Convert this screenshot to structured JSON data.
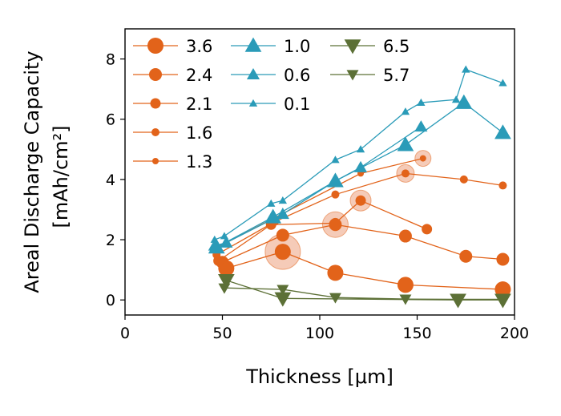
{
  "chart_data": {
    "type": "line",
    "title": "",
    "xlabel": "Thickness [μm]",
    "ylabel_line1": "Areal Discharge Capacity",
    "ylabel_line2": "[mAh/cm²]",
    "xlim": [
      0,
      200
    ],
    "ylim": [
      -0.5,
      9
    ],
    "xticks": [
      "0",
      "50",
      "100",
      "150",
      "200"
    ],
    "yticks": [
      "0",
      "2",
      "4",
      "6",
      "8"
    ],
    "grid": false,
    "legend_position": "upper-left",
    "colors": {
      "orange": "#e2631a",
      "teal": "#2a9bb8",
      "olive": "#5c7036",
      "highlight": "#f2b9a0"
    },
    "series": [
      {
        "name": "3.6",
        "color": "#e2631a",
        "marker": "circle",
        "size": 10,
        "lw": 1.3,
        "x": [
          52,
          81,
          108,
          144,
          194
        ],
        "y": [
          1.05,
          1.6,
          0.9,
          0.5,
          0.35
        ]
      },
      {
        "name": "2.4",
        "color": "#e2631a",
        "marker": "circle",
        "size": 8,
        "lw": 1.3,
        "x": [
          50,
          81,
          108,
          144,
          175,
          194
        ],
        "y": [
          1.25,
          2.15,
          2.5,
          2.12,
          1.45,
          1.35
        ]
      },
      {
        "name": "2.1",
        "color": "#e2631a",
        "marker": "circle",
        "size": 6.5,
        "lw": 1.3,
        "x": [
          48,
          75,
          108,
          121,
          155
        ],
        "y": [
          1.3,
          2.5,
          2.55,
          3.3,
          2.35
        ]
      },
      {
        "name": "1.6",
        "color": "#e2631a",
        "marker": "circle",
        "size": 5,
        "lw": 1.3,
        "x": [
          47,
          77,
          108,
          144,
          174,
          194
        ],
        "y": [
          1.5,
          2.6,
          3.5,
          4.2,
          4.0,
          3.8
        ]
      },
      {
        "name": "1.3",
        "color": "#e2631a",
        "marker": "circle",
        "size": 4,
        "lw": 1.3,
        "x": [
          46,
          76,
          121,
          153
        ],
        "y": [
          1.7,
          2.7,
          4.2,
          4.7
        ]
      },
      {
        "name": "1.0",
        "color": "#2a9bb8",
        "marker": "triangle-up",
        "size": 9,
        "lw": 1.3,
        "x": [
          47,
          76,
          108,
          144,
          174,
          194
        ],
        "y": [
          1.75,
          2.75,
          3.95,
          5.15,
          6.55,
          5.55
        ]
      },
      {
        "name": "0.6",
        "color": "#2a9bb8",
        "marker": "triangle-up",
        "size": 7,
        "lw": 1.3,
        "x": [
          46,
          52,
          81,
          108,
          121,
          152
        ],
        "y": [
          1.8,
          1.9,
          2.85,
          3.95,
          4.4,
          5.75
        ]
      },
      {
        "name": "0.1",
        "color": "#2a9bb8",
        "marker": "triangle-up",
        "size": 4.5,
        "lw": 1.3,
        "x": [
          46,
          51,
          75,
          81,
          108,
          121,
          144,
          152,
          170,
          175,
          194
        ],
        "y": [
          2.0,
          2.12,
          3.2,
          3.3,
          4.65,
          5.0,
          6.25,
          6.55,
          6.65,
          7.65,
          7.2
        ]
      },
      {
        "name": "6.5",
        "color": "#5c7036",
        "marker": "triangle-down",
        "size": 9,
        "lw": 1.3,
        "x": [
          52,
          81,
          171,
          194
        ],
        "y": [
          0.65,
          0.05,
          0.0,
          0.0
        ]
      },
      {
        "name": "5.7",
        "color": "#5c7036",
        "marker": "triangle-down",
        "size": 6.5,
        "lw": 1.3,
        "x": [
          51,
          81,
          108,
          144,
          171,
          194
        ],
        "y": [
          0.4,
          0.35,
          0.08,
          0.03,
          0.02,
          0.02
        ]
      }
    ],
    "highlights": [
      {
        "x": 81,
        "y": 1.6,
        "size": 22
      },
      {
        "x": 108,
        "y": 2.5,
        "size": 16
      },
      {
        "x": 121,
        "y": 3.3,
        "size": 13
      },
      {
        "x": 144,
        "y": 4.2,
        "size": 11
      },
      {
        "x": 153,
        "y": 4.7,
        "size": 10
      }
    ]
  }
}
